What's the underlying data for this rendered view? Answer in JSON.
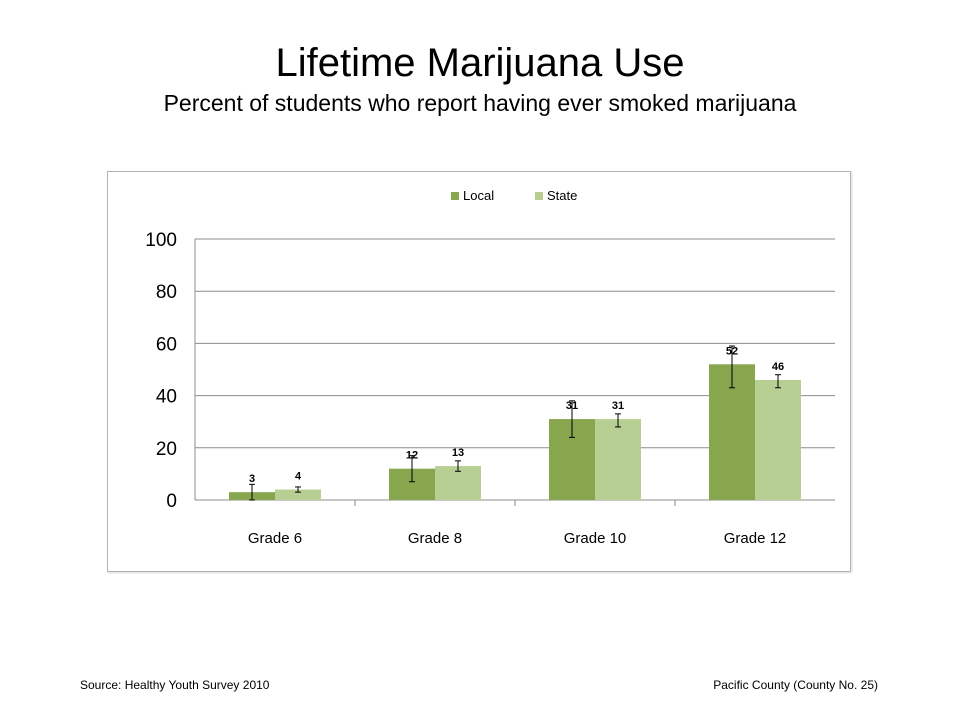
{
  "title": "Lifetime Marijuana Use",
  "subtitle": "Percent of students who report having ever smoked marijuana",
  "footer": {
    "source": "Source: Healthy Youth Survey 2010",
    "county": "Pacific County (County No. 25)"
  },
  "chart_data": {
    "type": "bar",
    "categories": [
      "Grade 6",
      "Grade 8",
      "Grade 10",
      "Grade 12"
    ],
    "series": [
      {
        "name": "Local",
        "color": "#88a64e",
        "values": [
          3,
          12,
          31,
          52
        ],
        "error_low": [
          0,
          7,
          24,
          43
        ],
        "error_high": [
          6,
          17,
          38,
          59
        ]
      },
      {
        "name": "State",
        "color": "#b8cf94",
        "values": [
          4,
          13,
          31,
          46
        ],
        "error_low": [
          3,
          11,
          28,
          43
        ],
        "error_high": [
          5,
          15,
          33,
          48
        ]
      }
    ],
    "ylim": [
      0,
      100
    ],
    "yticks": [
      0,
      20,
      40,
      60,
      80,
      100
    ],
    "grid": true,
    "legend": "top-center",
    "data_labels": true
  }
}
